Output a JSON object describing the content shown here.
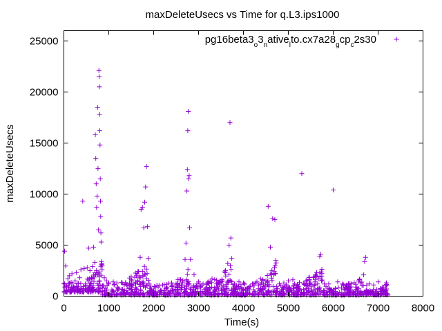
{
  "chart_data": {
    "type": "scatter",
    "title": "maxDeleteUsecs vs Time for q.L3.ips1000",
    "xlabel": "Time(s)",
    "ylabel": "maxDeleteUsecs",
    "xlim": [
      0,
      8000
    ],
    "ylim": [
      0,
      26000
    ],
    "xticks": [
      "0",
      "1000",
      "2000",
      "3000",
      "4000",
      "5000",
      "6000",
      "7000",
      "8000"
    ],
    "yticks": [
      "0",
      "5000",
      "10000",
      "15000",
      "20000",
      "25000"
    ],
    "grid": false,
    "legend_position": "top-right",
    "marker": "+",
    "series_color": "#9400d3",
    "series": [
      {
        "name": "pg16beta3_o3_native_lto.cx7a28_gcp_c2s30",
        "legend_parts": [
          {
            "t": "pg16beta3",
            "sub": false
          },
          {
            "t": "o",
            "sub": true
          },
          {
            "t": "3",
            "sub": false
          },
          {
            "t": "n",
            "sub": true
          },
          {
            "t": "ative",
            "sub": false
          },
          {
            "t": "l",
            "sub": true
          },
          {
            "t": "to.cx7a28",
            "sub": false
          },
          {
            "t": "g",
            "sub": true
          },
          {
            "t": "cp",
            "sub": false
          },
          {
            "t": "c",
            "sub": true
          },
          {
            "t": "2s30",
            "sub": false
          }
        ],
        "points": [
          [
            15,
            4400
          ],
          [
            20,
            900
          ],
          [
            40,
            2950
          ],
          [
            60,
            600
          ],
          [
            90,
            1700
          ],
          [
            120,
            2000
          ],
          [
            150,
            400
          ],
          [
            180,
            2200
          ],
          [
            220,
            900
          ],
          [
            250,
            1500
          ],
          [
            280,
            2300
          ],
          [
            310,
            700
          ],
          [
            350,
            1800
          ],
          [
            380,
            2600
          ],
          [
            420,
            9300
          ],
          [
            450,
            2700
          ],
          [
            480,
            1200
          ],
          [
            520,
            2800
          ],
          [
            550,
            4700
          ],
          [
            580,
            2500
          ],
          [
            610,
            1800
          ],
          [
            640,
            2900
          ],
          [
            660,
            4800
          ],
          [
            690,
            3300
          ],
          [
            700,
            15800
          ],
          [
            710,
            13500
          ],
          [
            720,
            11000
          ],
          [
            730,
            8700
          ],
          [
            740,
            9800
          ],
          [
            750,
            18500
          ],
          [
            760,
            12500
          ],
          [
            770,
            6500
          ],
          [
            780,
            22100
          ],
          [
            785,
            21500
          ],
          [
            790,
            20500
          ],
          [
            795,
            17800
          ],
          [
            800,
            16200
          ],
          [
            805,
            14800
          ],
          [
            810,
            11500
          ],
          [
            815,
            9300
          ],
          [
            820,
            7800
          ],
          [
            825,
            6200
          ],
          [
            830,
            5300
          ],
          [
            835,
            3400
          ],
          [
            840,
            3100
          ],
          [
            850,
            2600
          ],
          [
            870,
            1000
          ],
          [
            900,
            1800
          ],
          [
            950,
            1500
          ],
          [
            1000,
            1200
          ],
          [
            1100,
            1400
          ],
          [
            1200,
            900
          ],
          [
            1300,
            1300
          ],
          [
            1400,
            1100
          ],
          [
            1500,
            1600
          ],
          [
            1600,
            1200
          ],
          [
            1700,
            3800
          ],
          [
            1720,
            8500
          ],
          [
            1750,
            8700
          ],
          [
            1780,
            6700
          ],
          [
            1800,
            9200
          ],
          [
            1820,
            10700
          ],
          [
            1840,
            12700
          ],
          [
            1860,
            6800
          ],
          [
            1880,
            3700
          ],
          [
            1900,
            1200
          ],
          [
            2000,
            600
          ],
          [
            2100,
            900
          ],
          [
            2200,
            1100
          ],
          [
            2300,
            800
          ],
          [
            2400,
            1300
          ],
          [
            2500,
            1200
          ],
          [
            2600,
            1600
          ],
          [
            2700,
            3600
          ],
          [
            2720,
            5200
          ],
          [
            2740,
            10300
          ],
          [
            2750,
            12400
          ],
          [
            2760,
            16200
          ],
          [
            2770,
            18100
          ],
          [
            2780,
            11500
          ],
          [
            2790,
            11800
          ],
          [
            2800,
            6700
          ],
          [
            2820,
            3600
          ],
          [
            2900,
            2100
          ],
          [
            3000,
            1400
          ],
          [
            3100,
            1200
          ],
          [
            3200,
            1300
          ],
          [
            3300,
            1700
          ],
          [
            3400,
            1200
          ],
          [
            3500,
            1300
          ],
          [
            3600,
            2500
          ],
          [
            3650,
            3200
          ],
          [
            3680,
            5000
          ],
          [
            3700,
            17000
          ],
          [
            3720,
            5700
          ],
          [
            3740,
            3700
          ],
          [
            3800,
            1200
          ],
          [
            3900,
            1400
          ],
          [
            4000,
            1300
          ],
          [
            4200,
            1200
          ],
          [
            4300,
            1400
          ],
          [
            4400,
            1300
          ],
          [
            4500,
            1500
          ],
          [
            4550,
            8800
          ],
          [
            4600,
            4800
          ],
          [
            4650,
            7600
          ],
          [
            4700,
            7500
          ],
          [
            4720,
            3500
          ],
          [
            4800,
            1200
          ],
          [
            4900,
            1300
          ],
          [
            5000,
            1500
          ],
          [
            5100,
            1600
          ],
          [
            5200,
            1100
          ],
          [
            5300,
            12000
          ],
          [
            5400,
            1500
          ],
          [
            5500,
            1300
          ],
          [
            5600,
            1600
          ],
          [
            5700,
            3900
          ],
          [
            5720,
            4100
          ],
          [
            5800,
            1200
          ],
          [
            5900,
            1200
          ],
          [
            6000,
            10400
          ],
          [
            6100,
            1400
          ],
          [
            6200,
            1200
          ],
          [
            6300,
            800
          ],
          [
            6400,
            1200
          ],
          [
            6500,
            900
          ],
          [
            6600,
            1300
          ],
          [
            6700,
            3400
          ],
          [
            6720,
            3800
          ],
          [
            6800,
            1200
          ],
          [
            6900,
            1100
          ],
          [
            7000,
            1400
          ],
          [
            7100,
            900
          ],
          [
            7180,
            1300
          ],
          [
            7200,
            1100
          ]
        ],
        "recurring_envelope_by_interval_s": [
          [
            0,
            860,
            400,
            3300
          ],
          [
            860,
            1900,
            100,
            4000
          ],
          [
            1900,
            2830,
            100,
            3000
          ],
          [
            2830,
            3760,
            100,
            3500
          ],
          [
            3760,
            4730,
            100,
            3300
          ],
          [
            4730,
            5760,
            100,
            3200
          ],
          [
            5760,
            6760,
            100,
            2600
          ],
          [
            6760,
            7220,
            100,
            1500
          ]
        ]
      }
    ]
  }
}
